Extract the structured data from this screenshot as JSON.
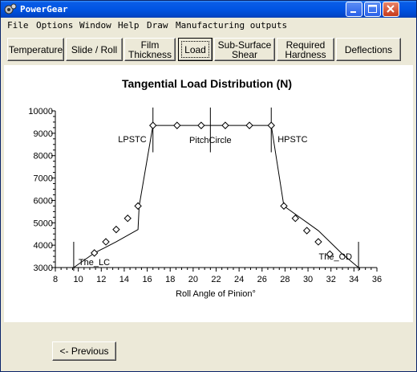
{
  "window": {
    "title": "PowerGear",
    "minimize_icon": "minimize-icon",
    "maximize_icon": "maximize-icon",
    "close_icon": "close-icon"
  },
  "menu": [
    "File",
    "Options",
    "Window",
    "Help",
    "Draw",
    "Manufacturing outputs"
  ],
  "tabs": [
    {
      "label": "Temperature"
    },
    {
      "label": "Slide / Roll"
    },
    {
      "label": "Film\nThickness"
    },
    {
      "label": "Load",
      "active": true
    },
    {
      "label": "Sub-Surface\nShear"
    },
    {
      "label": "Required\nHardness"
    },
    {
      "label": "Deflections"
    }
  ],
  "buttons": {
    "previous_label": "<- Previous"
  },
  "chart_data": {
    "type": "line",
    "title": "Tangential Load Distribution (N)",
    "xlabel": "Roll Angle of Pinion°",
    "ylabel": "",
    "xlim": [
      8,
      36
    ],
    "ylim": [
      3000,
      10000
    ],
    "x_ticks": [
      "8",
      "10",
      "12",
      "14",
      "16",
      "18",
      "20",
      "22",
      "24",
      "26",
      "28",
      "30",
      "32",
      "34",
      "36"
    ],
    "y_ticks": [
      "3000",
      "4000",
      "5000",
      "6000",
      "7000",
      "8000",
      "9000",
      "10000"
    ],
    "series": [
      {
        "line_points": [
          {
            "x": 9.6,
            "y": 3000
          },
          {
            "x": 11.4,
            "y": 3650
          },
          {
            "x": 13.3,
            "y": 4150
          },
          {
            "x": 15.2,
            "y": 4700
          },
          {
            "x": 15.2,
            "y": 4700
          },
          {
            "x": 15.3,
            "y": 5750
          },
          {
            "x": 16.5,
            "y": 9350
          },
          {
            "x": 26.8,
            "y": 9350
          },
          {
            "x": 27.9,
            "y": 5750
          },
          {
            "x": 30.9,
            "y": 4650
          },
          {
            "x": 33.0,
            "y": 3600
          },
          {
            "x": 34.4,
            "y": 3000
          }
        ],
        "markers": [
          {
            "x": 11.4,
            "y": 3650
          },
          {
            "x": 12.4,
            "y": 4150
          },
          {
            "x": 13.3,
            "y": 4700
          },
          {
            "x": 14.3,
            "y": 5200
          },
          {
            "x": 15.2,
            "y": 5750
          },
          {
            "x": 16.5,
            "y": 9350
          },
          {
            "x": 18.6,
            "y": 9350
          },
          {
            "x": 20.7,
            "y": 9350
          },
          {
            "x": 22.8,
            "y": 9350
          },
          {
            "x": 24.9,
            "y": 9350
          },
          {
            "x": 26.8,
            "y": 9350
          },
          {
            "x": 27.9,
            "y": 5750
          },
          {
            "x": 28.9,
            "y": 5200
          },
          {
            "x": 29.9,
            "y": 4650
          },
          {
            "x": 30.9,
            "y": 4150
          },
          {
            "x": 31.9,
            "y": 3600
          }
        ]
      }
    ],
    "vertical_markers": [
      {
        "label": "The_LC",
        "x": 9.6
      },
      {
        "label": "LPSTC",
        "x": 16.5
      },
      {
        "label": "PitchCircle",
        "x": 21.5
      },
      {
        "label": "HPSTC",
        "x": 26.8
      },
      {
        "label": "The_OD",
        "x": 34.4
      }
    ],
    "grid": false,
    "legend": "none"
  }
}
